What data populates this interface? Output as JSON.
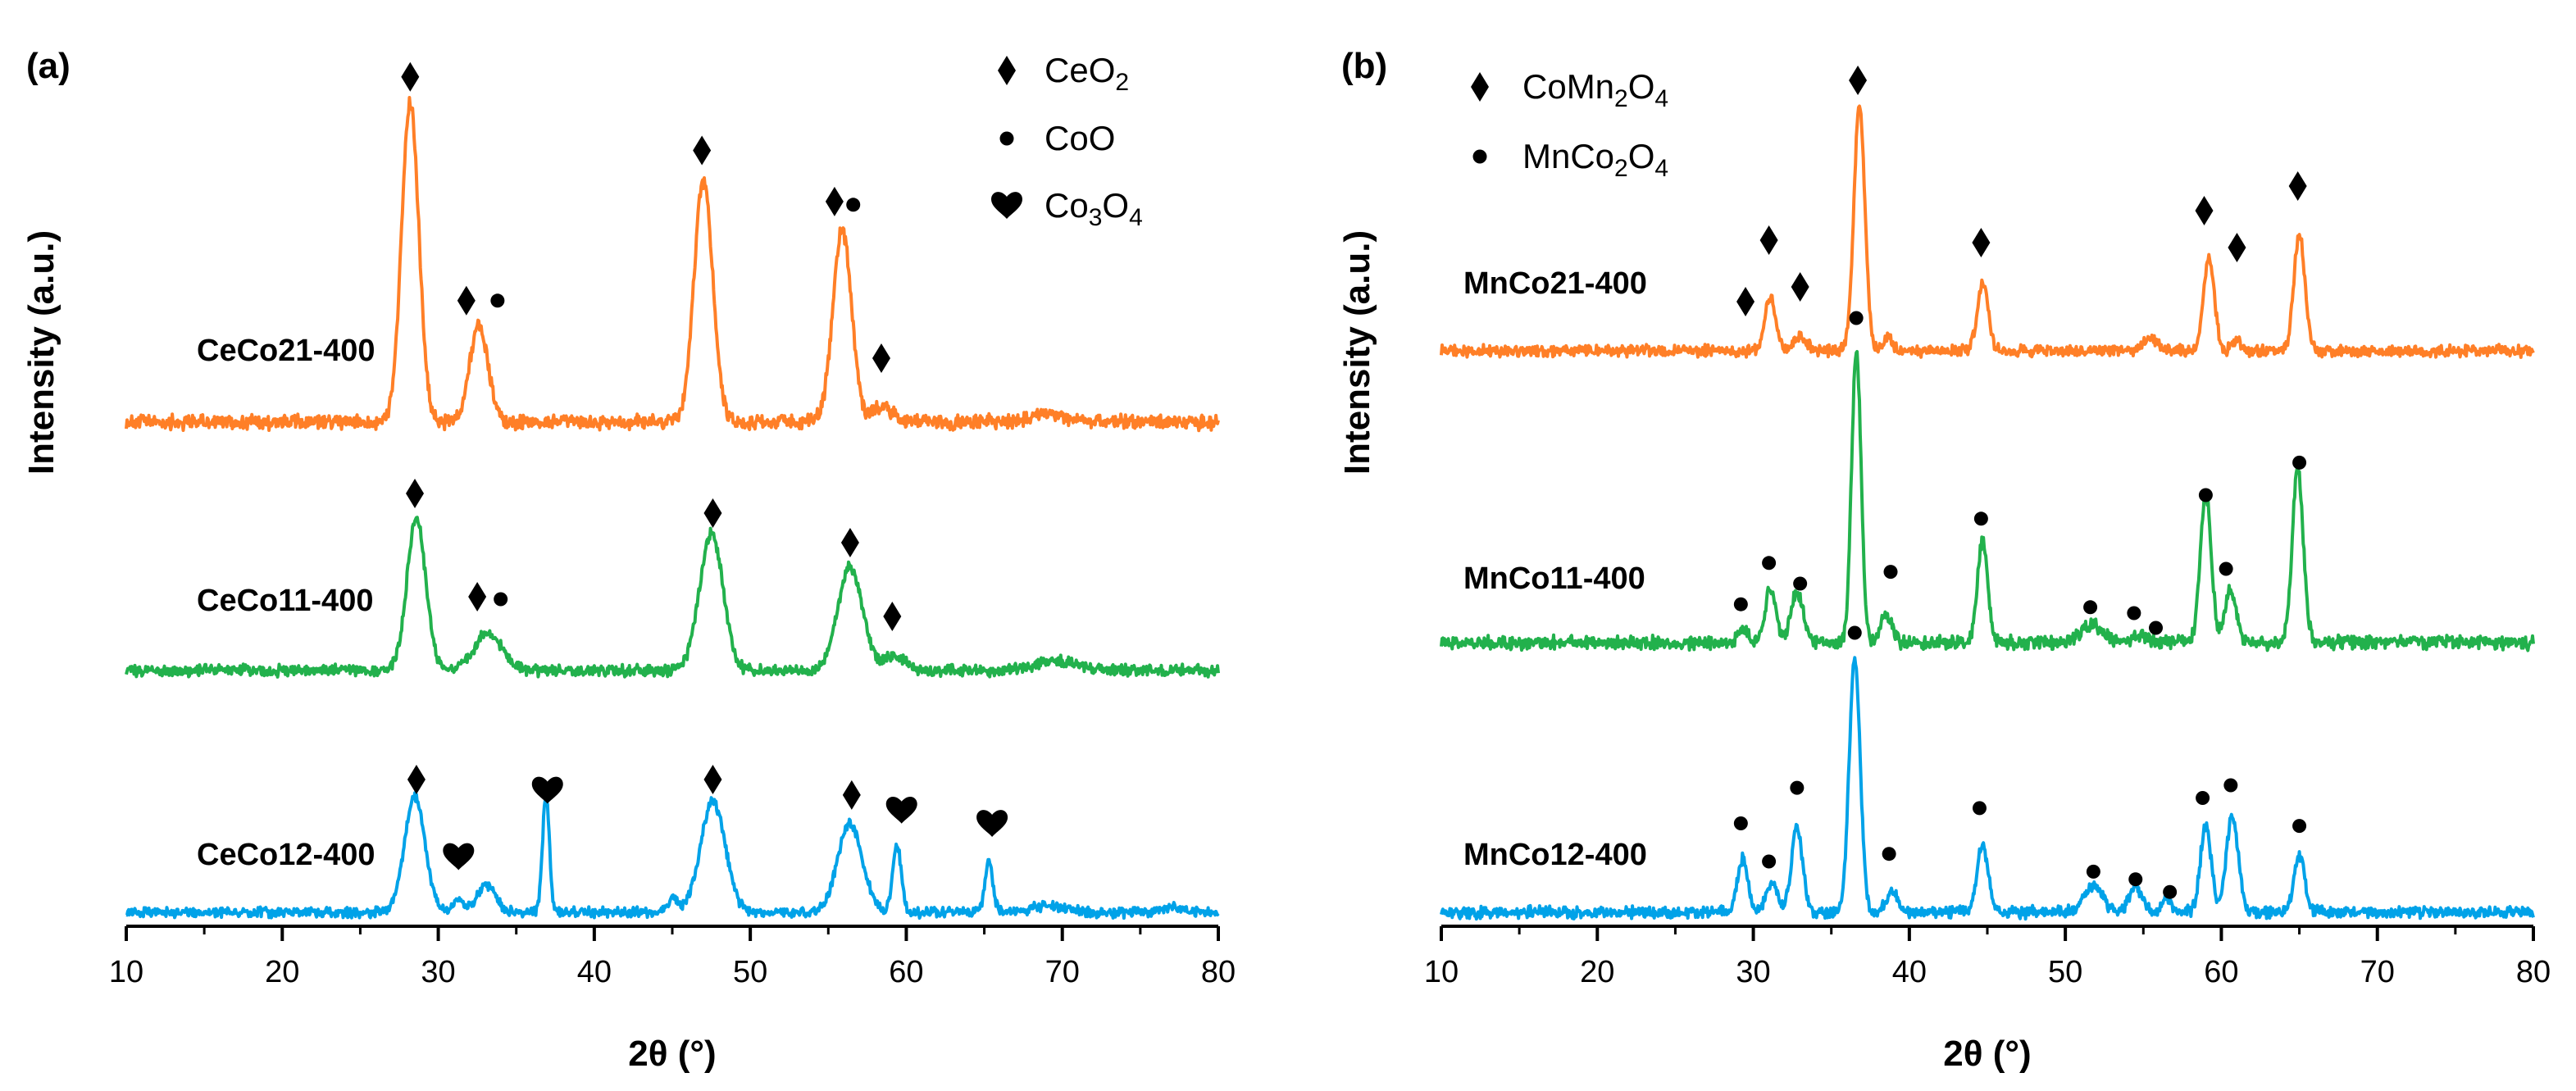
{
  "chart_data": [
    {
      "type": "line",
      "panel_label": "(a)",
      "xlabel": "2θ (°)",
      "ylabel": "Intensity (a.u.)",
      "xlim": [
        10,
        80
      ],
      "xticks": [
        10,
        20,
        30,
        40,
        50,
        60,
        70,
        80
      ],
      "legend": [
        {
          "symbol": "diamond",
          "label": "CeO",
          "sub": "2",
          "tail": ""
        },
        {
          "symbol": "circle",
          "label": "CoO",
          "sub": "",
          "tail": ""
        },
        {
          "symbol": "heart",
          "label": "Co",
          "sub": "3",
          "tail": "O",
          "sub2": "4"
        }
      ],
      "series": [
        {
          "name": "CeCo21-400",
          "color": "#FF7F27",
          "peaks": [
            [
              28.2,
              1.0,
              0.55
            ],
            [
              32.6,
              0.3,
              0.6
            ],
            [
              47.0,
              0.75,
              0.6
            ],
            [
              55.9,
              0.6,
              0.6
            ],
            [
              58.5,
              0.05,
              0.6
            ],
            [
              69.0,
              0.03,
              1.0
            ]
          ],
          "markers": [
            {
              "symbol": "diamond",
              "x": 28.2,
              "level": 1.08
            },
            {
              "symbol": "diamond",
              "x": 31.8,
              "level": 0.38
            },
            {
              "symbol": "circle",
              "x": 33.8,
              "level": 0.38
            },
            {
              "symbol": "diamond",
              "x": 46.9,
              "level": 0.85
            },
            {
              "symbol": "diamond",
              "x": 55.4,
              "level": 0.69
            },
            {
              "symbol": "circle",
              "x": 56.6,
              "level": 0.68
            },
            {
              "symbol": "diamond",
              "x": 58.4,
              "level": 0.2
            }
          ]
        },
        {
          "name": "CeCo11-400",
          "color": "#22B14C",
          "peaks": [
            [
              28.6,
              0.62,
              0.6
            ],
            [
              33.2,
              0.15,
              0.9
            ],
            [
              47.5,
              0.56,
              0.75
            ],
            [
              56.4,
              0.42,
              0.8
            ],
            [
              59.3,
              0.06,
              0.7
            ],
            [
              69.5,
              0.04,
              1.2
            ]
          ],
          "markers": [
            {
              "symbol": "diamond",
              "x": 28.5,
              "level": 0.72
            },
            {
              "symbol": "diamond",
              "x": 32.5,
              "level": 0.3
            },
            {
              "symbol": "circle",
              "x": 34.0,
              "level": 0.29
            },
            {
              "symbol": "diamond",
              "x": 47.6,
              "level": 0.64
            },
            {
              "symbol": "diamond",
              "x": 56.4,
              "level": 0.52
            },
            {
              "symbol": "diamond",
              "x": 59.1,
              "level": 0.22
            }
          ]
        },
        {
          "name": "CeCo12-400",
          "color": "#00A2E8",
          "peaks": [
            [
              28.5,
              0.52,
              0.65
            ],
            [
              31.3,
              0.06,
              0.3
            ],
            [
              33.1,
              0.12,
              0.6
            ],
            [
              36.9,
              0.53,
              0.22
            ],
            [
              45.0,
              0.06,
              0.35
            ],
            [
              47.6,
              0.5,
              0.8
            ],
            [
              56.4,
              0.4,
              0.8
            ],
            [
              59.4,
              0.3,
              0.28
            ],
            [
              65.3,
              0.24,
              0.25
            ],
            [
              69.0,
              0.03,
              1.0
            ],
            [
              77.0,
              0.02,
              1.0
            ]
          ],
          "markers": [
            {
              "symbol": "diamond",
              "x": 28.6,
              "level": 0.6
            },
            {
              "symbol": "heart",
              "x": 31.3,
              "level": 0.25
            },
            {
              "symbol": "heart",
              "x": 37.0,
              "level": 0.55
            },
            {
              "symbol": "diamond",
              "x": 47.6,
              "level": 0.6
            },
            {
              "symbol": "diamond",
              "x": 56.5,
              "level": 0.53
            },
            {
              "symbol": "heart",
              "x": 59.7,
              "level": 0.46
            },
            {
              "symbol": "heart",
              "x": 65.5,
              "level": 0.4
            }
          ]
        }
      ]
    },
    {
      "type": "line",
      "panel_label": "(b)",
      "xlabel": "2θ (°)",
      "ylabel": "Intensity (a.u.)",
      "xlim": [
        10,
        80
      ],
      "xticks": [
        10,
        20,
        30,
        40,
        50,
        60,
        70,
        80
      ],
      "legend": [
        {
          "symbol": "diamond",
          "label": "CoMn",
          "sub": "2",
          "tail": "O",
          "sub2": "4"
        },
        {
          "symbol": "circle",
          "label": "MnCo",
          "sub": "2",
          "tail": "O",
          "sub2": "4"
        }
      ],
      "series": [
        {
          "name": "MnCo21-400",
          "color": "#FF7F27",
          "peaks": [
            [
              31.1,
              0.22,
              0.35
            ],
            [
              33.0,
              0.06,
              0.4
            ],
            [
              36.8,
              1.0,
              0.35
            ],
            [
              38.6,
              0.05,
              0.3
            ],
            [
              44.7,
              0.27,
              0.35
            ],
            [
              55.5,
              0.05,
              0.5
            ],
            [
              59.2,
              0.37,
              0.35
            ],
            [
              61.0,
              0.04,
              0.3
            ],
            [
              65.0,
              0.48,
              0.35
            ]
          ],
          "markers": [
            {
              "symbol": "diamond",
              "x": 29.5,
              "level": 0.2
            },
            {
              "symbol": "diamond",
              "x": 31.0,
              "level": 0.45
            },
            {
              "symbol": "diamond",
              "x": 33.0,
              "level": 0.26
            },
            {
              "symbol": "diamond",
              "x": 36.7,
              "level": 1.1
            },
            {
              "symbol": "diamond",
              "x": 44.6,
              "level": 0.44
            },
            {
              "symbol": "diamond",
              "x": 58.9,
              "level": 0.57
            },
            {
              "symbol": "diamond",
              "x": 61.0,
              "level": 0.42
            },
            {
              "symbol": "diamond",
              "x": 64.9,
              "level": 0.67
            }
          ]
        },
        {
          "name": "MnCo11-400",
          "color": "#22B14C",
          "peaks": [
            [
              29.3,
              0.05,
              0.3
            ],
            [
              31.1,
              0.18,
              0.35
            ],
            [
              32.8,
              0.17,
              0.4
            ],
            [
              36.6,
              1.0,
              0.3
            ],
            [
              38.5,
              0.1,
              0.35
            ],
            [
              44.7,
              0.35,
              0.32
            ],
            [
              51.7,
              0.06,
              0.7
            ],
            [
              54.8,
              0.03,
              0.5
            ],
            [
              59.0,
              0.5,
              0.35
            ],
            [
              60.6,
              0.18,
              0.35
            ],
            [
              64.9,
              0.59,
              0.35
            ]
          ],
          "markers": [
            {
              "symbol": "circle",
              "x": 29.2,
              "level": 0.13
            },
            {
              "symbol": "circle",
              "x": 31.0,
              "level": 0.27
            },
            {
              "symbol": "circle",
              "x": 33.0,
              "level": 0.2
            },
            {
              "symbol": "circle",
              "x": 36.6,
              "level": 1.1
            },
            {
              "symbol": "circle",
              "x": 38.8,
              "level": 0.24
            },
            {
              "symbol": "circle",
              "x": 44.6,
              "level": 0.42
            },
            {
              "symbol": "circle",
              "x": 51.6,
              "level": 0.12
            },
            {
              "symbol": "circle",
              "x": 54.4,
              "level": 0.1
            },
            {
              "symbol": "circle",
              "x": 55.8,
              "level": 0.05
            },
            {
              "symbol": "circle",
              "x": 59.0,
              "level": 0.5
            },
            {
              "symbol": "circle",
              "x": 60.3,
              "level": 0.25
            },
            {
              "symbol": "circle",
              "x": 65.0,
              "level": 0.61
            }
          ]
        },
        {
          "name": "MnCo12-400",
          "color": "#00A2E8",
          "peaks": [
            [
              29.3,
              0.21,
              0.32
            ],
            [
              31.2,
              0.12,
              0.35
            ],
            [
              32.8,
              0.34,
              0.35
            ],
            [
              36.5,
              1.0,
              0.35
            ],
            [
              38.9,
              0.08,
              0.4
            ],
            [
              44.7,
              0.27,
              0.35
            ],
            [
              51.8,
              0.1,
              0.6
            ],
            [
              54.5,
              0.1,
              0.4
            ],
            [
              56.5,
              0.05,
              0.3
            ],
            [
              59.0,
              0.34,
              0.35
            ],
            [
              60.7,
              0.38,
              0.38
            ],
            [
              65.0,
              0.22,
              0.35
            ]
          ],
          "markers": [
            {
              "symbol": "circle",
              "x": 29.2,
              "level": 0.35
            },
            {
              "symbol": "circle",
              "x": 31.0,
              "level": 0.2
            },
            {
              "symbol": "circle",
              "x": 32.8,
              "level": 0.49
            },
            {
              "symbol": "circle",
              "x": 36.5,
              "level": 1.1
            },
            {
              "symbol": "circle",
              "x": 38.7,
              "level": 0.23
            },
            {
              "symbol": "circle",
              "x": 44.5,
              "level": 0.41
            },
            {
              "symbol": "circle",
              "x": 51.8,
              "level": 0.16
            },
            {
              "symbol": "circle",
              "x": 54.5,
              "level": 0.13
            },
            {
              "symbol": "circle",
              "x": 56.7,
              "level": 0.08
            },
            {
              "symbol": "circle",
              "x": 58.8,
              "level": 0.45
            },
            {
              "symbol": "circle",
              "x": 60.6,
              "level": 0.5
            },
            {
              "symbol": "circle",
              "x": 65.0,
              "level": 0.34
            }
          ]
        }
      ]
    }
  ]
}
